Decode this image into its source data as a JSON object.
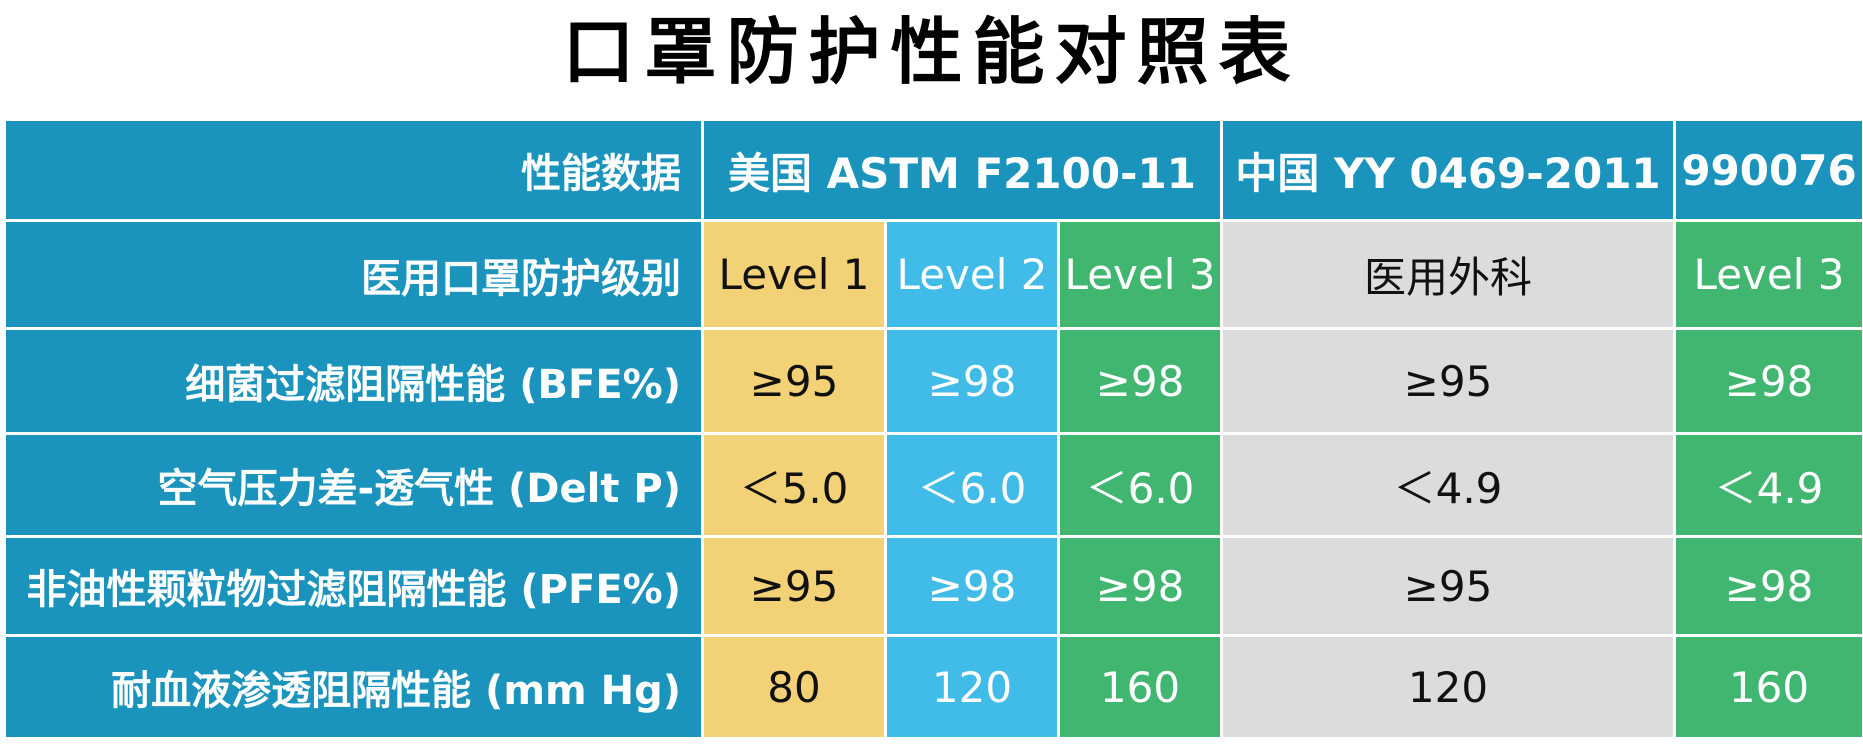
{
  "title": "口罩防护性能对照表",
  "header": {
    "row_label": "性能数据",
    "usa": "美国 ASTM F2100-11",
    "china": "中国 YY 0469-2011",
    "other": "990076"
  },
  "rows": [
    {
      "label": "医用口罩防护级别",
      "values": [
        "Level 1",
        "Level 2",
        "Level 3",
        "医用外科",
        "Level 3"
      ]
    },
    {
      "label": "细菌过滤阻隔性能 (BFE%)",
      "values": [
        "≥95",
        "≥98",
        "≥98",
        "≥95",
        "≥98"
      ]
    },
    {
      "label": "空气压力差-透气性 (Delt P)",
      "values": [
        "＜5.0",
        "＜6.0",
        "＜6.0",
        "＜4.9",
        "＜4.9"
      ]
    },
    {
      "label": "非油性颗粒物过滤阻隔性能 (PFE%)",
      "values": [
        "≥95",
        "≥98",
        "≥98",
        "≥95",
        "≥98"
      ]
    },
    {
      "label": "耐血液渗透阻隔性能 (mm Hg)",
      "values": [
        "80",
        "120",
        "160",
        "120",
        "160"
      ]
    }
  ],
  "colors": {
    "header_blue": "#1a93bd",
    "level1_yellow": "#f3d176",
    "level2_light_blue": "#41bbe8",
    "level3_green": "#41b671",
    "china_gray": "#dcdcdc"
  }
}
